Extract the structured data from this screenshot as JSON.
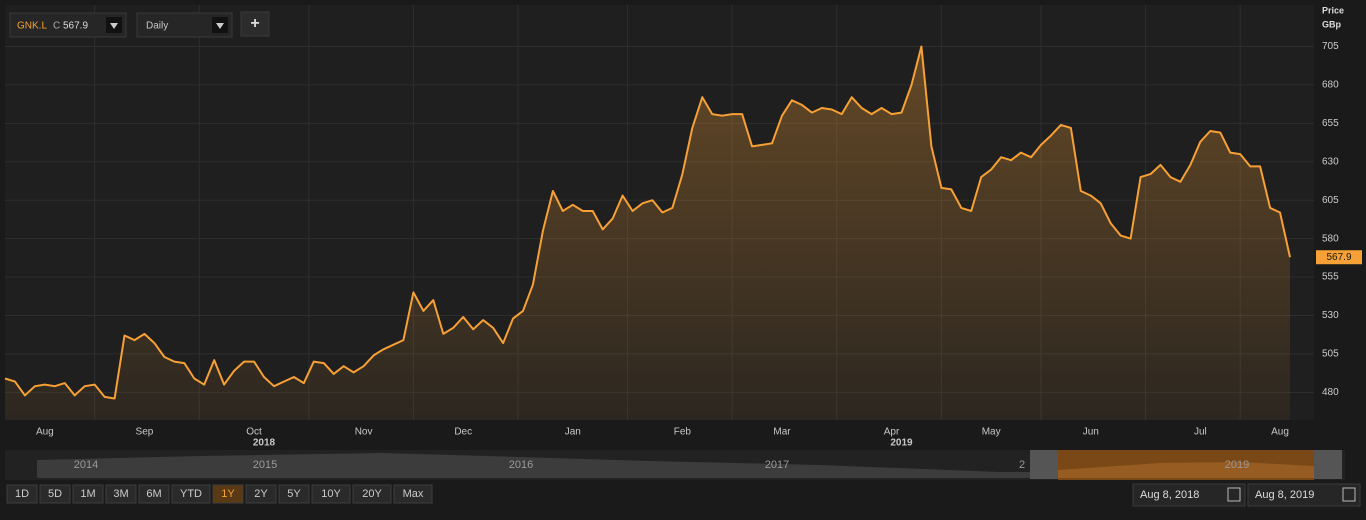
{
  "toolbar": {
    "close_prefix": "C",
    "interval": "Daily",
    "add": "+"
  },
  "chart_data": {
    "type": "line",
    "ylabel": "Price",
    "yunit": "GBp",
    "categories": [
      null,
      null,
      null,
      null,
      "Aug",
      null,
      null,
      null,
      null,
      null,
      null,
      null,
      null,
      null,
      "Sep",
      null,
      null,
      null,
      null,
      null,
      null,
      null,
      null,
      null,
      null,
      "Oct",
      null,
      null,
      null,
      null,
      null,
      null,
      null,
      null,
      null,
      null,
      "Nov",
      null,
      null,
      null,
      null,
      null,
      null,
      null,
      null,
      null,
      "Dec",
      null,
      null,
      null,
      null,
      null,
      null,
      null,
      null,
      null,
      null,
      "Jan",
      null,
      null,
      null,
      null,
      null,
      null,
      null,
      null,
      null,
      null,
      "Feb",
      null,
      null,
      null,
      null,
      null,
      null,
      null,
      null,
      null,
      "Mar",
      null,
      null,
      null,
      null,
      null,
      null,
      null,
      null,
      null,
      null,
      "Apr",
      null,
      null,
      null,
      null,
      null,
      null,
      null,
      null,
      null,
      "May",
      null,
      null,
      null,
      null,
      null,
      null,
      null,
      null,
      null,
      "Jun",
      null,
      null,
      null,
      null,
      null,
      null,
      null,
      null,
      null,
      null,
      "Jul",
      null,
      null,
      null,
      null,
      null,
      null,
      null,
      "Aug",
      null
    ],
    "years": [
      null,
      null,
      null,
      null,
      null,
      null,
      null,
      null,
      null,
      null,
      null,
      null,
      null,
      null,
      null,
      null,
      null,
      null,
      null,
      null,
      null,
      null,
      null,
      null,
      null,
      null,
      "2018",
      null,
      null,
      null,
      null,
      null,
      null,
      null,
      null,
      null,
      null,
      null,
      null,
      null,
      null,
      null,
      null,
      null,
      null,
      null,
      null,
      null,
      null,
      null,
      null,
      null,
      null,
      null,
      null,
      null,
      null,
      null,
      null,
      null,
      null,
      null,
      null,
      null,
      null,
      null,
      null,
      null,
      null,
      null,
      null,
      null,
      null,
      null,
      null,
      null,
      null,
      null,
      null,
      null,
      null,
      null,
      null,
      null,
      null,
      null,
      null,
      null,
      null,
      null,
      "2019",
      null,
      null,
      null,
      null,
      null,
      null,
      null,
      null,
      null,
      null,
      null,
      null,
      null,
      null,
      null,
      null,
      null,
      null,
      null,
      null,
      null,
      null,
      null,
      null,
      null,
      null,
      null,
      null,
      null,
      null,
      null,
      null,
      null,
      null,
      null,
      null,
      null,
      null,
      null
    ],
    "series": [
      {
        "name": "GNK.L",
        "color": "#f7a035",
        "values": [
          489,
          487,
          478,
          484,
          485,
          484,
          486,
          478,
          484,
          485,
          477,
          476,
          517,
          514,
          518,
          512,
          503,
          500,
          499,
          489,
          485,
          501,
          485,
          494,
          500,
          500,
          490,
          484,
          487,
          490,
          486,
          500,
          499,
          492,
          497,
          493,
          497,
          504,
          508,
          511,
          514,
          545,
          533,
          540,
          518,
          522,
          529,
          521,
          527,
          522,
          512,
          528,
          533,
          550,
          585,
          611,
          598,
          602,
          598,
          598,
          586,
          593,
          608,
          598,
          603,
          605,
          597,
          600,
          622,
          652,
          672,
          661,
          660,
          661,
          661,
          640,
          641,
          642,
          660,
          670,
          667,
          662,
          665,
          664,
          661,
          672,
          665,
          661,
          665,
          661,
          662,
          680,
          705,
          640,
          613,
          612,
          600,
          598,
          620,
          625,
          633,
          631,
          636,
          633,
          641,
          647,
          654,
          652,
          611,
          608,
          603,
          590,
          582,
          580,
          620,
          622,
          628,
          620,
          617,
          628,
          643,
          650,
          649,
          636,
          635,
          627,
          627,
          600,
          597,
          567.9
        ]
      }
    ],
    "ylim": [
      462,
      732
    ],
    "yticks": [
      480,
      505,
      530,
      555,
      580,
      605,
      630,
      655,
      680,
      705
    ],
    "grid": true
  },
  "navigator": {
    "years": [
      "2014",
      "2015",
      "2016",
      "2017",
      "2",
      "2019"
    ],
    "ranges": [
      "1D",
      "5D",
      "1M",
      "3M",
      "6M",
      "YTD",
      "1Y",
      "2Y",
      "5Y",
      "10Y",
      "20Y",
      "Max"
    ],
    "active_range": 6,
    "date_from": "Aug 8, 2018",
    "date_to": "Aug 8, 2019"
  }
}
